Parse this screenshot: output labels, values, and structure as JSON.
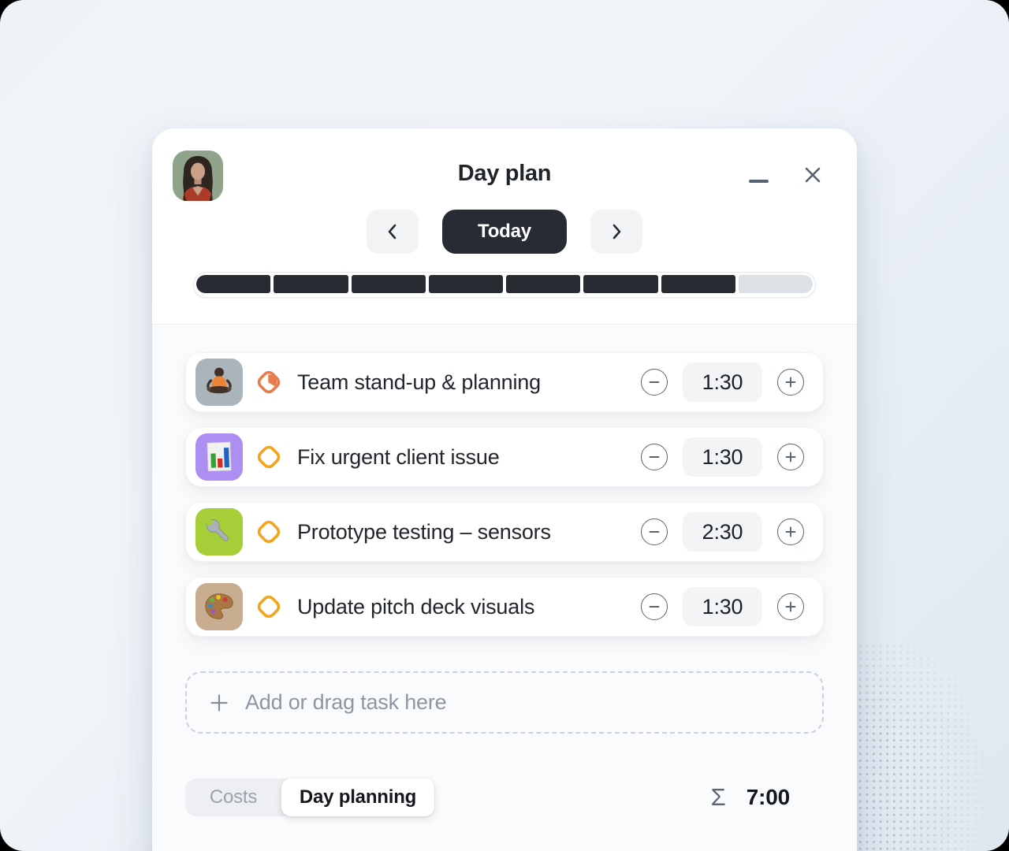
{
  "window": {
    "title": "Day plan"
  },
  "header_controls": {
    "minimize_icon": "minimize-icon",
    "close_icon": "close-icon"
  },
  "nav": {
    "prev_icon": "chevron-left-icon",
    "today_label": "Today",
    "next_icon": "chevron-right-icon"
  },
  "progress": {
    "segments_total": 8,
    "segments_filled": 7,
    "filled_color": "#272C33",
    "empty_color": "#DCE1E5"
  },
  "tasks": [
    {
      "title": "Team stand-up & planning",
      "duration": "1:30",
      "tile_color": "#A9B5BB",
      "tile_icon": "meditation-emoji-icon",
      "marker": "timer",
      "marker_color": "#E97C4E"
    },
    {
      "title": "Fix urgent client issue",
      "duration": "1:30",
      "tile_color": "#AC8FF0",
      "tile_icon": "bar-chart-emoji-icon",
      "marker": "diamond",
      "marker_color": "#F2A51D"
    },
    {
      "title": "Prototype testing – sensors",
      "duration": "2:30",
      "tile_color": "#A6CE39",
      "tile_icon": "wrench-emoji-icon",
      "marker": "diamond",
      "marker_color": "#F2A51D"
    },
    {
      "title": "Update pitch deck visuals",
      "duration": "1:30",
      "tile_color": "#C9AD90",
      "tile_icon": "palette-emoji-icon",
      "marker": "diamond",
      "marker_color": "#F2A51D"
    }
  ],
  "add_task": {
    "label": "Add or drag task here",
    "plus_icon": "plus-icon"
  },
  "footer": {
    "tabs": [
      {
        "label": "Costs",
        "active": false
      },
      {
        "label": "Day planning",
        "active": true
      }
    ],
    "sum_symbol": "Σ",
    "total_time": "7:00"
  },
  "colors": {
    "accent_orange": "#E97C4E",
    "accent_amber": "#F2A51D",
    "dark": "#272C33",
    "window_bg": "#FFFFFF"
  }
}
